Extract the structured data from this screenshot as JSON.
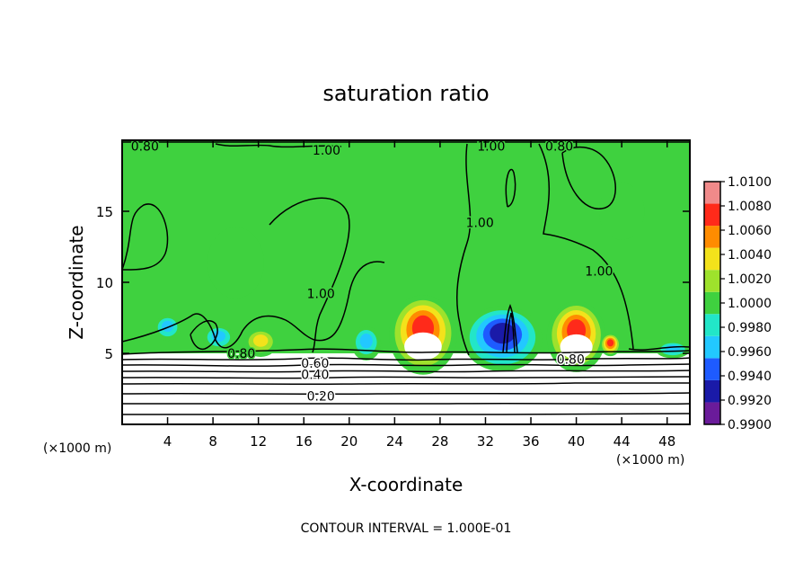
{
  "chart_data": {
    "type": "heatmap",
    "title": "saturation ratio",
    "xlabel": "X-coordinate",
    "ylabel": "Z-coordinate",
    "x_unit": "(×1000 m)",
    "y_unit": "(×1000 m)",
    "xlim": [
      0,
      50
    ],
    "ylim": [
      0,
      20
    ],
    "x_ticks": [
      4,
      8,
      12,
      16,
      20,
      24,
      28,
      32,
      36,
      40,
      44,
      48
    ],
    "y_ticks": [
      5,
      10,
      15
    ],
    "contour_interval_text": "CONTOUR INTERVAL = 1.000E-01",
    "colorbar": {
      "values": [
        0.99,
        0.992,
        0.994,
        0.996,
        0.998,
        1.0,
        1.002,
        1.004,
        1.006,
        1.008,
        1.01
      ],
      "labels": [
        "0.9900",
        "0.9920",
        "0.9940",
        "0.9960",
        "0.9980",
        "1.0000",
        "1.0020",
        "1.0040",
        "1.0060",
        "1.0080",
        "1.0100"
      ],
      "colors": [
        "#6a1b9a",
        "#1a1aa8",
        "#1e5bff",
        "#22c8ff",
        "#22e6c8",
        "#3fd13f",
        "#9ee22c",
        "#f3e21b",
        "#ff8c00",
        "#ff2a1a",
        "#f08a8a"
      ]
    },
    "background_value_color": "#3fd13f",
    "features": [
      {
        "kind": "peak",
        "x": 26.5,
        "z": 7.0,
        "rx": 3.0,
        "rz": 2.8,
        "value": 1.0095
      },
      {
        "kind": "peak",
        "x": 40.0,
        "z": 6.8,
        "rx": 2.6,
        "rz": 2.5,
        "value": 1.009
      },
      {
        "kind": "peak",
        "x": 43.0,
        "z": 5.8,
        "rx": 0.9,
        "rz": 0.8,
        "value": 1.008
      },
      {
        "kind": "peak",
        "x": 12.2,
        "z": 6.0,
        "rx": 1.5,
        "rz": 1.0,
        "value": 1.005
      },
      {
        "kind": "trough",
        "x": 33.5,
        "z": 6.6,
        "rx": 3.5,
        "rz": 2.3,
        "value": 0.9915
      },
      {
        "kind": "trough",
        "x": 21.5,
        "z": 6.0,
        "rx": 1.3,
        "rz": 1.2,
        "value": 0.9955
      },
      {
        "kind": "trough",
        "x": 4.0,
        "z": 7.0,
        "rx": 1.2,
        "rz": 0.9,
        "value": 0.996
      },
      {
        "kind": "trough",
        "x": 8.5,
        "z": 6.3,
        "rx": 1.4,
        "rz": 0.9,
        "value": 0.996
      },
      {
        "kind": "trough",
        "x": 48.5,
        "z": 5.4,
        "rx": 1.5,
        "rz": 0.6,
        "value": 0.996
      },
      {
        "kind": "trough",
        "x": 44.0,
        "z": 15.5,
        "rx": 2.0,
        "rz": 2.0,
        "value": 0.9985
      },
      {
        "kind": "trough",
        "x": 10.0,
        "z": 12.0,
        "rx": 2.5,
        "rz": 2.5,
        "value": 0.9988
      }
    ],
    "contour_labels": [
      {
        "text": "0.80",
        "x": 2.0,
        "z": 19.6
      },
      {
        "text": "1.00",
        "x": 32.5,
        "z": 19.6
      },
      {
        "text": "0.80",
        "x": 38.5,
        "z": 19.6
      },
      {
        "text": "1.00",
        "x": 18.0,
        "z": 19.3
      },
      {
        "text": "1.00",
        "x": 31.5,
        "z": 14.2
      },
      {
        "text": "1.00",
        "x": 42.0,
        "z": 10.8
      },
      {
        "text": "1.00",
        "x": 17.5,
        "z": 9.2
      },
      {
        "text": "0.80",
        "x": 10.5,
        "z": 5.0
      },
      {
        "text": "0.80",
        "x": 39.5,
        "z": 4.6
      },
      {
        "text": "0.60",
        "x": 17.0,
        "z": 4.3
      },
      {
        "text": "0.40",
        "x": 17.0,
        "z": 3.5
      },
      {
        "text": "0.20",
        "x": 17.5,
        "z": 2.0
      }
    ]
  }
}
